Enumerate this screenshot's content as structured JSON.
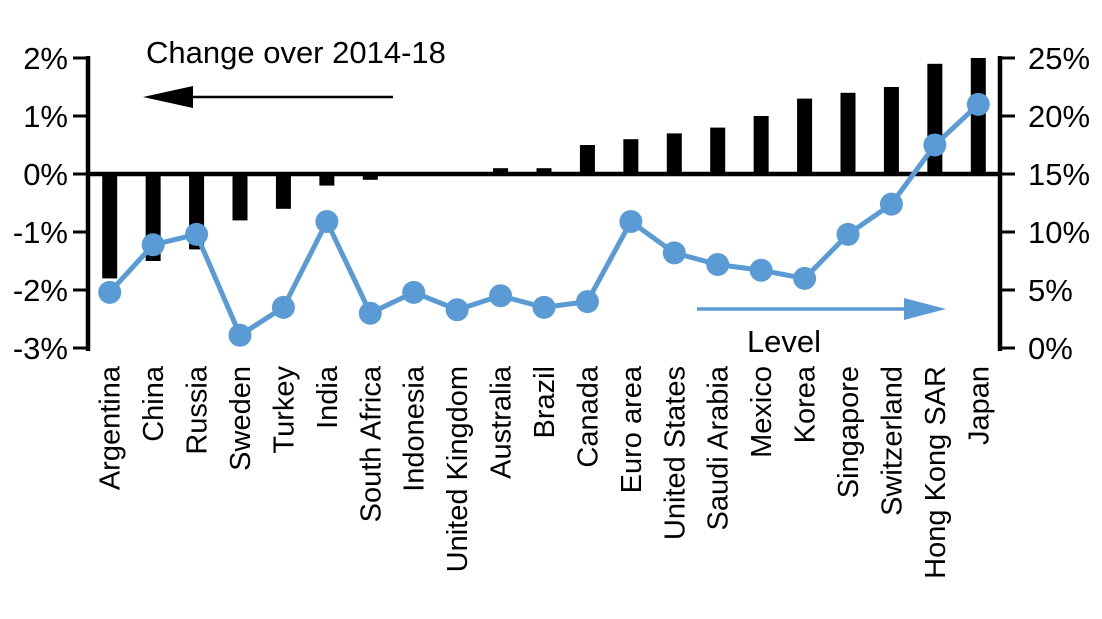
{
  "chart_data": {
    "type": "bar",
    "subtype": "combo-bar-line-dual-axis",
    "title": "",
    "categories": [
      "Argentina",
      "China",
      "Russia",
      "Sweden",
      "Turkey",
      "India",
      "South Africa",
      "Indonesia",
      "United Kingdom",
      "Australia",
      "Brazil",
      "Canada",
      "Euro area",
      "United States",
      "Saudi Arabia",
      "Mexico",
      "Korea",
      "Singapore",
      "Switzerland",
      "Hong Kong SAR",
      "Japan"
    ],
    "series": [
      {
        "name": "Change over 2014-18",
        "type": "bar",
        "axis": "left",
        "color": "#000000",
        "values": [
          -1.8,
          -1.5,
          -1.3,
          -0.8,
          -0.6,
          -0.2,
          -0.1,
          0.0,
          0.0,
          0.1,
          0.1,
          0.5,
          0.6,
          0.7,
          0.8,
          1.0,
          1.3,
          1.4,
          1.5,
          1.9,
          2.0
        ]
      },
      {
        "name": "Level",
        "type": "line",
        "axis": "right",
        "color": "#5B9BD5",
        "values": [
          4.8,
          8.9,
          9.8,
          1.1,
          3.5,
          10.9,
          3.0,
          4.8,
          3.3,
          4.5,
          3.5,
          4.0,
          10.9,
          8.2,
          7.2,
          6.7,
          6.0,
          9.8,
          12.4,
          17.5,
          21.0
        ]
      }
    ],
    "left_axis": {
      "ticks": [
        "2%",
        "1%",
        "0%",
        "-1%",
        "-2%",
        "-3%"
      ],
      "tick_values": [
        2,
        1,
        0,
        -1,
        -2,
        -3
      ],
      "min": -3,
      "max": 2
    },
    "right_axis": {
      "ticks": [
        "25%",
        "20%",
        "15%",
        "10%",
        "5%",
        "0%"
      ],
      "tick_values": [
        25,
        20,
        15,
        10,
        5,
        0
      ],
      "min": 0,
      "max": 25
    },
    "annotations": {
      "bar_series_label": "Change over 2014-18",
      "line_series_label": "Level",
      "bar_arrow_direction": "left",
      "line_arrow_direction": "right"
    },
    "grid": false,
    "legend_position": "in-plot-annotations"
  }
}
